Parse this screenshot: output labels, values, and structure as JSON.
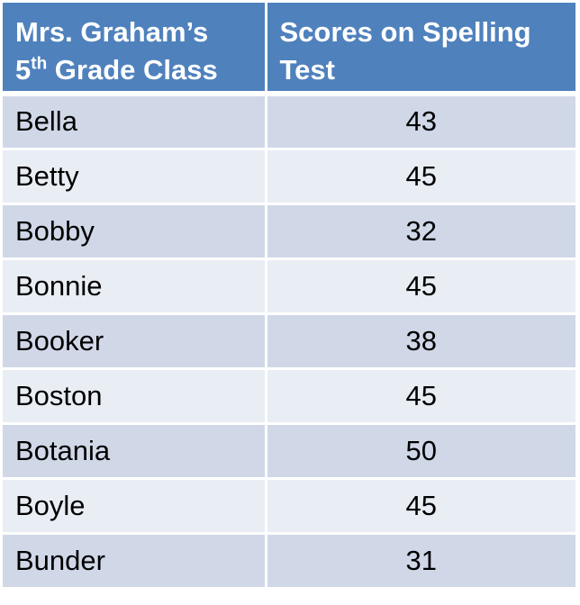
{
  "chart_data": {
    "type": "table",
    "columns": {
      "teacher_prefix": "Mrs. Graham’s",
      "grade_number": "5",
      "grade_suffix": "th",
      "grade_rest": " Grade Class",
      "scores": "Scores on Spelling Test"
    },
    "rows": [
      {
        "name": "Bella",
        "score": "43"
      },
      {
        "name": "Betty",
        "score": "45"
      },
      {
        "name": "Bobby",
        "score": "32"
      },
      {
        "name": "Bonnie",
        "score": "45"
      },
      {
        "name": "Booker",
        "score": "38"
      },
      {
        "name": "Boston",
        "score": "45"
      },
      {
        "name": "Botania",
        "score": "50"
      },
      {
        "name": "Boyle",
        "score": "45"
      },
      {
        "name": "Bunder",
        "score": "31"
      }
    ],
    "colors": {
      "header": "#4f81bd",
      "row_dark": "#d0d8e8",
      "row_light": "#e9edf4"
    }
  }
}
